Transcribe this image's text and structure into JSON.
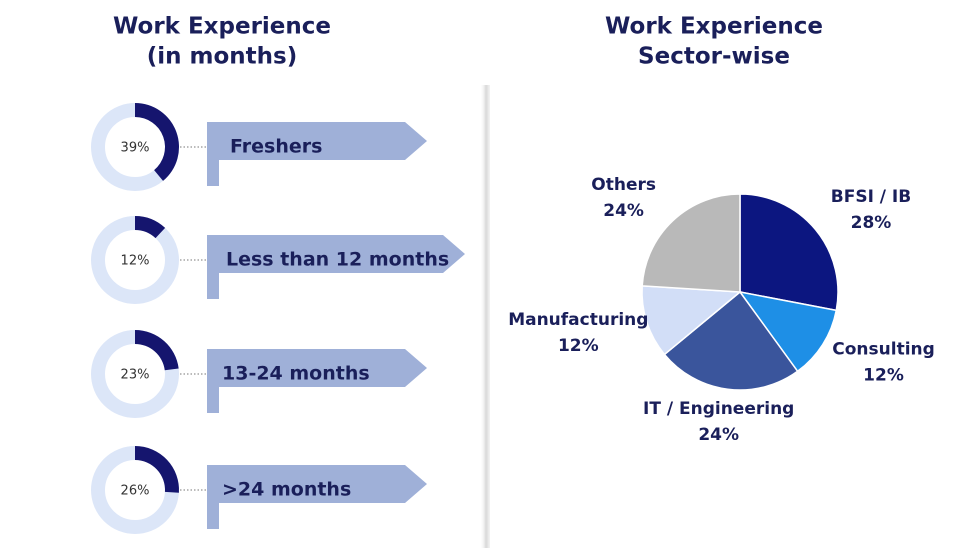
{
  "chart_data": [
    {
      "type": "gauge",
      "title": [
        "Work Experience",
        "(in months)"
      ],
      "categories": [
        "Freshers",
        "Less than 12 months",
        "13-24 months",
        ">24 months"
      ],
      "values": [
        39,
        12,
        23,
        26
      ],
      "value_labels": [
        "39%",
        "12%",
        "23%",
        "26%"
      ],
      "color": "#15156e",
      "track_color": "#dce6f8",
      "label_color": "#9fb0d8"
    },
    {
      "type": "pie",
      "title": [
        "Work Experience",
        "Sector-wise"
      ],
      "categories": [
        "BFSI / IB",
        "Consulting",
        "IT / Engineering",
        "Manufacturing",
        "Others"
      ],
      "values": [
        28,
        12,
        24,
        12,
        24
      ],
      "value_labels": [
        "28%",
        "12%",
        "24%",
        "12%",
        "24%"
      ],
      "colors": [
        "#0c1680",
        "#1e8fe6",
        "#3a559c",
        "#d2def7",
        "#b9b9b9"
      ]
    }
  ]
}
